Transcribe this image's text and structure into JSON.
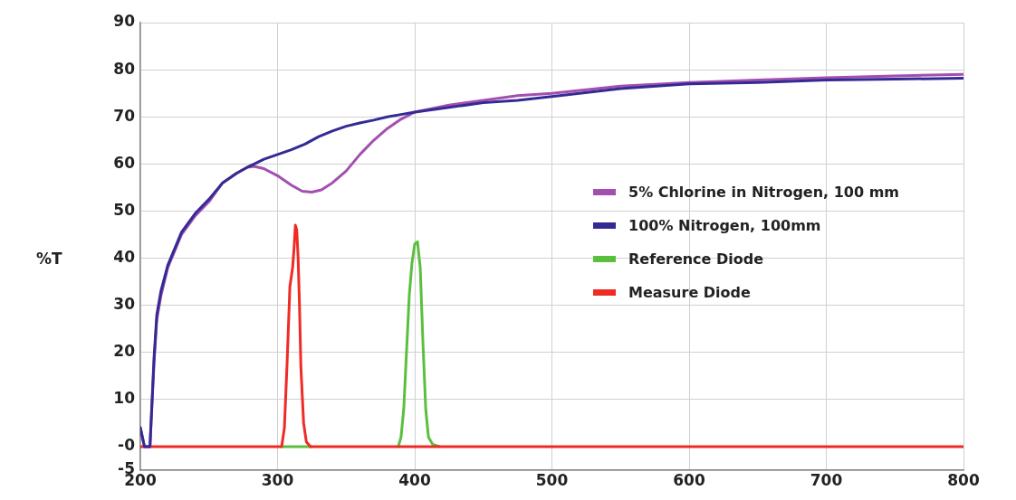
{
  "chart_data": {
    "type": "line",
    "ylabel": "%T",
    "xlim": [
      200,
      800
    ],
    "xticks": [
      200,
      300,
      400,
      500,
      600,
      700,
      800
    ],
    "ylim": [
      -5,
      90
    ],
    "yticks": [
      -5,
      {
        "value": 0,
        "label": "-0"
      },
      10,
      20,
      30,
      40,
      50,
      60,
      70,
      80,
      90
    ],
    "grid": true,
    "legend": "right",
    "marker": "none",
    "line_style": "solid",
    "series": [
      {
        "name": "5% Chlorine in Nitrogen, 100 mm",
        "color": "#a34fb0",
        "x": [
          200,
          203,
          207,
          210,
          212,
          215,
          220,
          230,
          240,
          250,
          260,
          270,
          278,
          283,
          290,
          300,
          310,
          318,
          325,
          332,
          340,
          350,
          360,
          370,
          380,
          390,
          400,
          425,
          450,
          475,
          500,
          550,
          600,
          650,
          700,
          750,
          800
        ],
        "values": [
          4,
          0,
          0,
          18,
          27,
          32,
          38,
          45,
          49,
          52,
          56,
          58,
          59.3,
          59.5,
          59,
          57.5,
          55.5,
          54.2,
          54,
          54.5,
          56,
          58.5,
          62,
          65,
          67.5,
          69.5,
          71,
          72.5,
          73.5,
          74.5,
          75,
          76.5,
          77.3,
          77.8,
          78.3,
          78.7,
          79
        ]
      },
      {
        "name": "100% Nitrogen, 100mm",
        "color": "#332a94",
        "x": [
          200,
          203,
          207,
          210,
          212,
          215,
          220,
          230,
          240,
          250,
          260,
          270,
          278,
          283,
          290,
          300,
          310,
          320,
          330,
          340,
          350,
          360,
          370,
          380,
          390,
          400,
          425,
          450,
          475,
          500,
          550,
          600,
          650,
          700,
          750,
          800
        ],
        "values": [
          4,
          0,
          0,
          19,
          28,
          33,
          38.5,
          45.5,
          49.5,
          52.5,
          56,
          58,
          59.3,
          60,
          61,
          62,
          63,
          64.2,
          65.8,
          67,
          68,
          68.7,
          69.3,
          70,
          70.5,
          71,
          72,
          73,
          73.5,
          74.3,
          76,
          77,
          77.3,
          77.8,
          78,
          78.2
        ]
      },
      {
        "name": "Reference Diode",
        "color": "#5bbf3e",
        "x": [
          303,
          325,
          350,
          388,
          390,
          392,
          394,
          396,
          398,
          400,
          402,
          404,
          406,
          408,
          410,
          413,
          418
        ],
        "values": [
          0,
          0,
          null,
          0,
          2,
          8,
          20,
          32,
          39,
          43,
          43.5,
          38,
          22,
          8,
          2,
          0.5,
          0
        ]
      },
      {
        "name": "Measure Diode",
        "color": "#ee2b24",
        "x": [
          200,
          303,
          305,
          307,
          309,
          311,
          312,
          313,
          314,
          315,
          316,
          317,
          319,
          321,
          324,
          800
        ],
        "values": [
          0,
          0,
          4,
          18,
          34,
          38,
          42,
          47,
          46,
          40,
          30,
          17,
          5,
          1,
          0,
          0
        ]
      }
    ]
  }
}
